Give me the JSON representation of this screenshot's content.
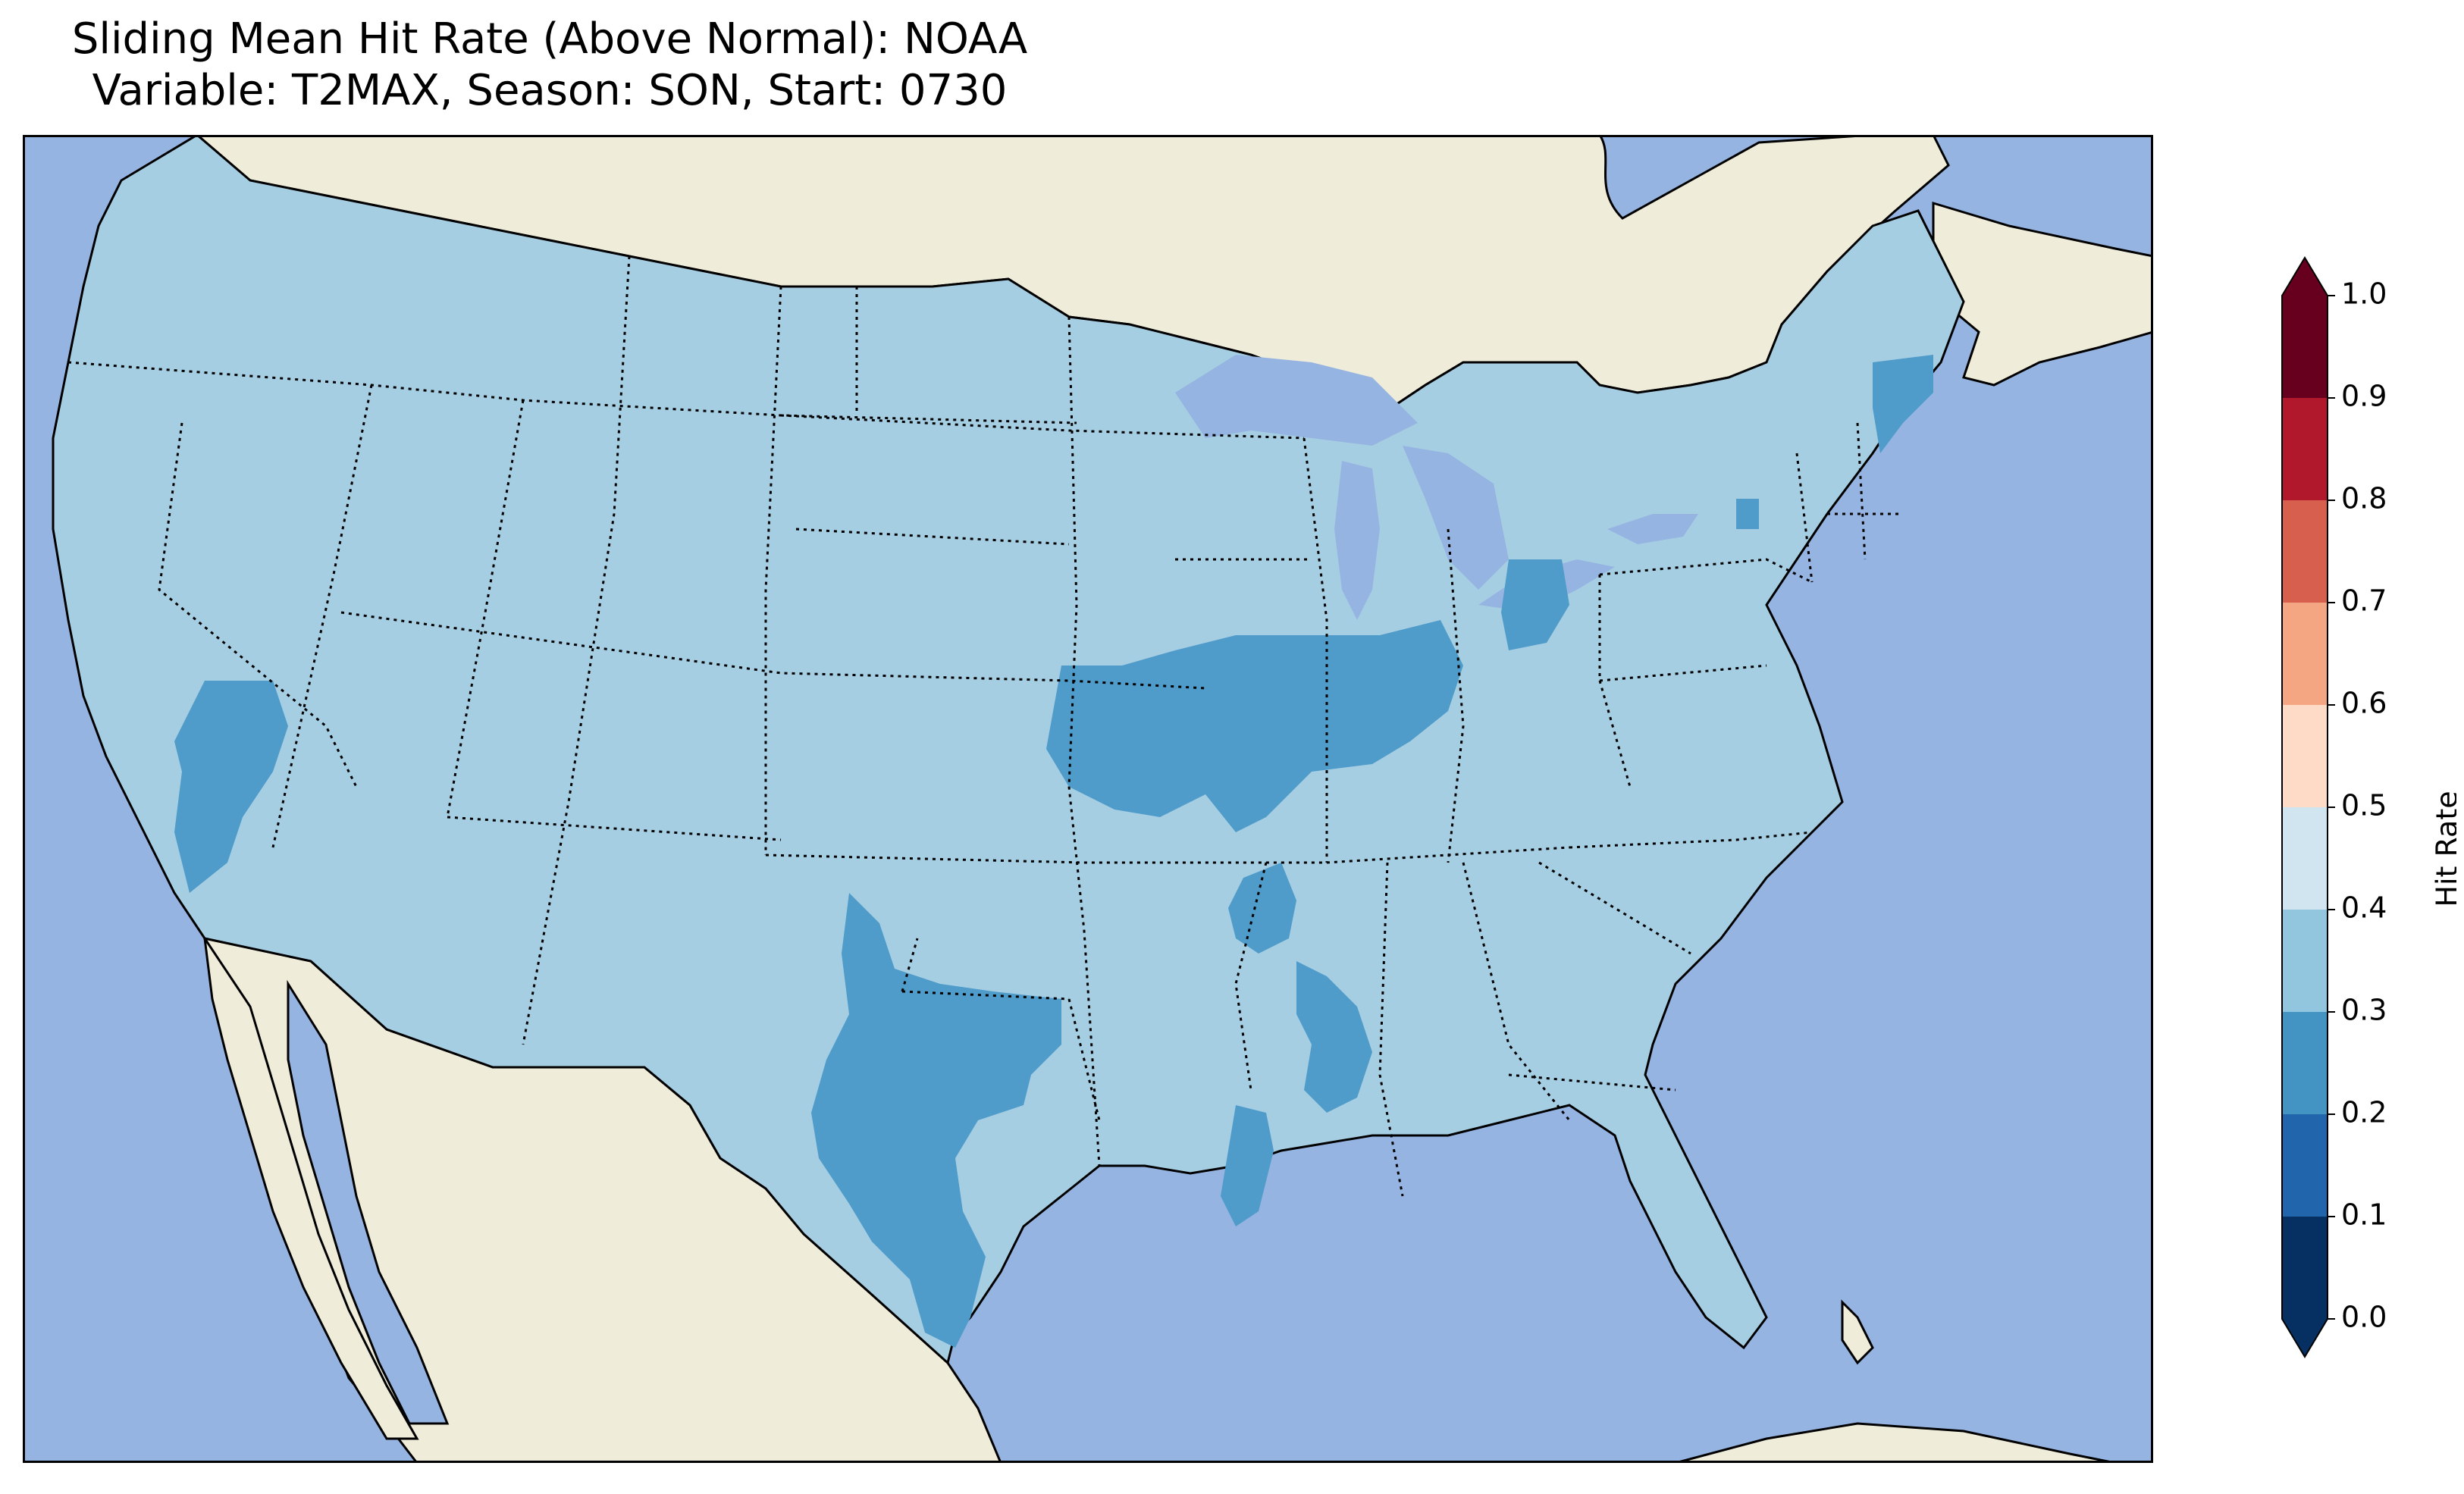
{
  "title": {
    "line1": "Sliding Mean Hit Rate (Above Normal): NOAA",
    "line2": "Variable: T2MAX, Season: SON, Start: 0730"
  },
  "colors": {
    "ocean": "#95b4e1",
    "land": "#efedda",
    "lakes": "#95b4e1",
    "band_0_1": "#053061",
    "band_1_2": "#2166ac",
    "band_2_3": "#4393c3",
    "band_3_4": "#92c5de",
    "band_4_5": "#d1e5f0",
    "band_5_6": "#fddbc7",
    "band_6_7": "#f4a582",
    "band_7_8": "#d6604d",
    "band_8_9": "#b2182b",
    "band_9_10": "#67001f"
  },
  "map_data": {
    "dominant_band": "0.3-0.4",
    "lower_band_regions": [
      "California / Nevada border",
      "Kansas City region",
      "Missouri / Illinois",
      "Texas",
      "Mississippi / Louisiana",
      "Ohio",
      "Maine coast"
    ]
  },
  "colorbar": {
    "label": "Hit Rate",
    "ticks": [
      "0.0",
      "0.1",
      "0.2",
      "0.3",
      "0.4",
      "0.5",
      "0.6",
      "0.7",
      "0.8",
      "0.9",
      "1.0"
    ],
    "extend": "both"
  }
}
